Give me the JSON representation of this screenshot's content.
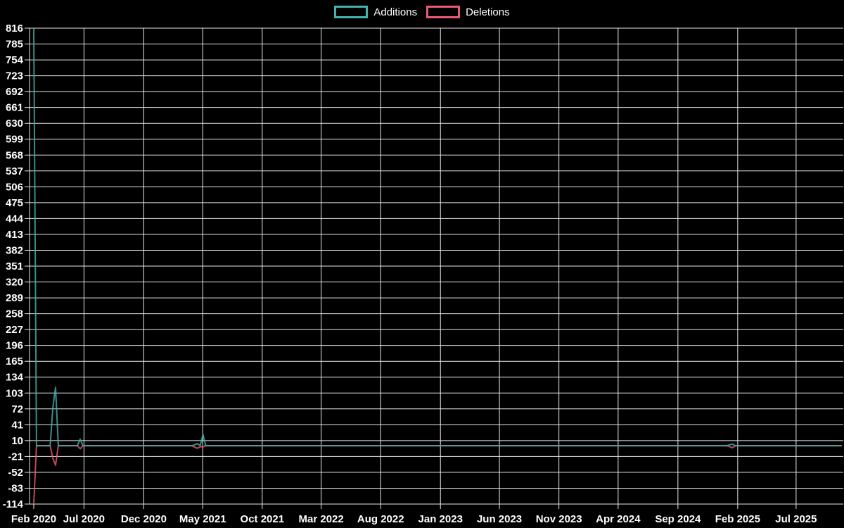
{
  "legend": {
    "additions_label": "Additions",
    "deletions_label": "Deletions"
  },
  "colors": {
    "additions": "#43b3ad",
    "deletions": "#eb5a74",
    "grid": "#e8e8e8",
    "tick_text": "#ffffff",
    "background": "#000000"
  },
  "chart_data": {
    "type": "line",
    "title": "",
    "xlabel": "",
    "ylabel": "",
    "grid": true,
    "legend_position": "top-center",
    "ylim": [
      -114,
      816
    ],
    "y_ticks": [
      816,
      785,
      754,
      723,
      692,
      661,
      630,
      599,
      568,
      537,
      506,
      475,
      444,
      413,
      382,
      351,
      320,
      289,
      258,
      227,
      196,
      165,
      134,
      103,
      72,
      41,
      10,
      -21,
      -52,
      -83,
      -114
    ],
    "x_ticks": [
      {
        "label": "Feb 2020",
        "week": 0,
        "gridline": false
      },
      {
        "label": "Jul 2020",
        "week": 18.4,
        "gridline": true
      },
      {
        "label": "Dec 2020",
        "week": 40.3,
        "gridline": true
      },
      {
        "label": "May 2021",
        "week": 61.9,
        "gridline": true
      },
      {
        "label": "Oct 2021",
        "week": 83.7,
        "gridline": true
      },
      {
        "label": "Mar 2022",
        "week": 105.3,
        "gridline": true
      },
      {
        "label": "Aug 2022",
        "week": 127.1,
        "gridline": true
      },
      {
        "label": "Jan 2023",
        "week": 149.0,
        "gridline": true
      },
      {
        "label": "Jun 2023",
        "week": 170.6,
        "gridline": true
      },
      {
        "label": "Nov 2023",
        "week": 192.4,
        "gridline": true
      },
      {
        "label": "Apr 2024",
        "week": 214.1,
        "gridline": true
      },
      {
        "label": "Sep 2024",
        "week": 236.0,
        "gridline": true
      },
      {
        "label": "Feb 2025",
        "week": 257.9,
        "gridline": true
      },
      {
        "label": "Jul 2025",
        "week": 279.3,
        "gridline": true
      }
    ],
    "x_unit": "weeks from first point (x tick labels shown above)",
    "weeks_total": 297,
    "series": [
      {
        "name": "Additions",
        "color": "#43b3ad",
        "default_value": 0,
        "nonzero_points": {
          "0": 816,
          "7": 75,
          "8": 114,
          "17": 13,
          "59": 2,
          "60": 4,
          "62": 22,
          "255": 2,
          "256": 3
        }
      },
      {
        "name": "Deletions",
        "color": "#eb5a74",
        "default_value": 0,
        "nonzero_points": {
          "0": -114,
          "7": -25,
          "8": -38,
          "17": -6,
          "59": -3,
          "60": -5,
          "61": -2,
          "62": -2,
          "255": -2,
          "256": -4
        }
      }
    ]
  }
}
